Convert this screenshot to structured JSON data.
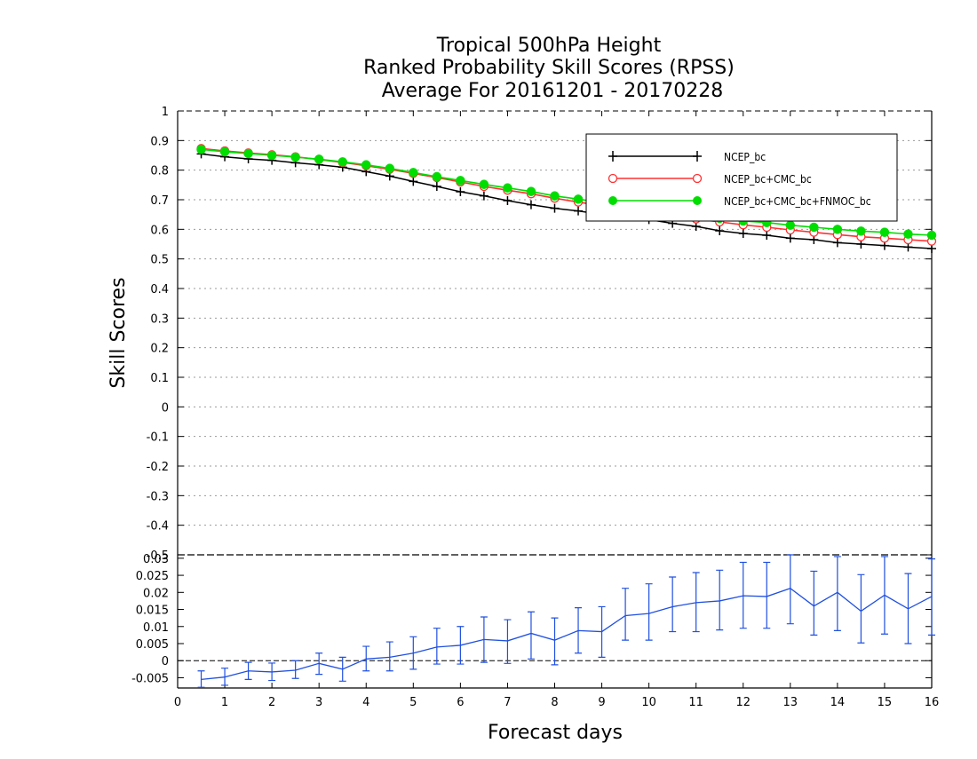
{
  "titles": [
    "Tropical 500hPa Height",
    "Ranked Probability Skill Scores (RPSS)",
    "Average For 20161201 - 20170228"
  ],
  "colors": {
    "ncep": "#000000",
    "cmc": "#ff3030",
    "fnmoc": "#00dd00",
    "diff": "#2050e0"
  },
  "chart_data": [
    {
      "type": "line",
      "title": "Tropical 500hPa Height Ranked Probability Skill Scores (RPSS) Average For 20161201 - 20170228",
      "xlabel": "Forecast days",
      "ylabel": "Skill Scores",
      "xlim": [
        0,
        16
      ],
      "ylim": [
        -0.5,
        1
      ],
      "x_ticks": [
        "0",
        "1",
        "2",
        "3",
        "4",
        "5",
        "6",
        "7",
        "8",
        "9",
        "10",
        "11",
        "12",
        "13",
        "14",
        "15",
        "16"
      ],
      "y_ticks": [
        "1",
        "0.9",
        "0.8",
        "0.7",
        "0.6",
        "0.5",
        "0.4",
        "0.3",
        "0.2",
        "0.1",
        "0",
        "-0.1",
        "-0.2",
        "-0.3",
        "-0.4",
        "-0.5"
      ],
      "grid": true,
      "legend_position": "top-right",
      "x": [
        0.5,
        1,
        1.5,
        2,
        2.5,
        3,
        3.5,
        4,
        4.5,
        5,
        5.5,
        6,
        6.5,
        7,
        7.5,
        8,
        8.5,
        9,
        9.5,
        10,
        10.5,
        11,
        11.5,
        12,
        12.5,
        13,
        13.5,
        14,
        14.5,
        15,
        15.5,
        16
      ],
      "series": [
        {
          "name": "NCEP_bc",
          "marker": "plus",
          "values": [
            0.855,
            0.845,
            0.838,
            0.833,
            0.825,
            0.818,
            0.81,
            0.795,
            0.78,
            0.762,
            0.745,
            0.727,
            0.713,
            0.697,
            0.683,
            0.671,
            0.662,
            0.65,
            0.642,
            0.633,
            0.62,
            0.61,
            0.595,
            0.586,
            0.58,
            0.57,
            0.565,
            0.555,
            0.55,
            0.545,
            0.54,
            0.535
          ]
        },
        {
          "name": "NCEP_bc+CMC_bc",
          "marker": "open-circle",
          "values": [
            0.873,
            0.865,
            0.858,
            0.852,
            0.845,
            0.836,
            0.826,
            0.815,
            0.803,
            0.789,
            0.775,
            0.76,
            0.745,
            0.732,
            0.72,
            0.705,
            0.692,
            0.68,
            0.67,
            0.66,
            0.647,
            0.635,
            0.625,
            0.615,
            0.607,
            0.598,
            0.59,
            0.582,
            0.575,
            0.57,
            0.565,
            0.56
          ]
        },
        {
          "name": "NCEP_bc+CMC_bc+FNMOC_bc",
          "marker": "filled-circle",
          "values": [
            0.87,
            0.862,
            0.856,
            0.85,
            0.844,
            0.837,
            0.828,
            0.818,
            0.806,
            0.792,
            0.778,
            0.765,
            0.752,
            0.74,
            0.728,
            0.713,
            0.702,
            0.69,
            0.68,
            0.67,
            0.657,
            0.645,
            0.637,
            0.628,
            0.623,
            0.614,
            0.607,
            0.6,
            0.594,
            0.59,
            0.584,
            0.58
          ]
        }
      ]
    },
    {
      "type": "line",
      "title": "",
      "xlabel": "Forecast days",
      "ylabel": "",
      "xlim": [
        0,
        16
      ],
      "ylim": [
        -0.008,
        0.031
      ],
      "y_ticks": [
        "0.03",
        "0.025",
        "0.02",
        "0.015",
        "0.01",
        "0.005",
        "0",
        "-0.005"
      ],
      "y_tick_values": [
        0.03,
        0.025,
        0.02,
        0.015,
        0.01,
        0.005,
        0,
        -0.005
      ],
      "zero_line": true,
      "x": [
        0.5,
        1,
        1.5,
        2,
        2.5,
        3,
        3.5,
        4,
        4.5,
        5,
        5.5,
        6,
        6.5,
        7,
        7.5,
        8,
        8.5,
        9,
        9.5,
        10,
        10.5,
        11,
        11.5,
        12,
        12.5,
        13,
        13.5,
        14,
        14.5,
        15,
        15.5,
        16
      ],
      "series": [
        {
          "values": [
            -0.0055,
            -0.0048,
            -0.003,
            -0.0033,
            -0.0028,
            -0.0008,
            -0.0025,
            0.0005,
            0.001,
            0.0022,
            0.004,
            0.0045,
            0.0062,
            0.0058,
            0.008,
            0.006,
            0.0088,
            0.0085,
            0.0132,
            0.0138,
            0.0158,
            0.017,
            0.0175,
            0.019,
            0.0188,
            0.0212,
            0.016,
            0.02,
            0.0145,
            0.0192,
            0.0152,
            0.0188
          ],
          "error_low": [
            -0.0078,
            -0.0072,
            -0.0055,
            -0.0058,
            -0.0052,
            -0.004,
            -0.006,
            -0.003,
            -0.003,
            -0.0025,
            -0.001,
            -0.001,
            -0.0005,
            -0.0008,
            0.0005,
            -0.0012,
            0.0022,
            0.001,
            0.006,
            0.006,
            0.0085,
            0.0085,
            0.009,
            0.0095,
            0.0095,
            0.0108,
            0.0075,
            0.0088,
            0.0052,
            0.0078,
            0.005,
            0.0075
          ],
          "error_high": [
            -0.003,
            -0.0022,
            -0.0005,
            -0.0007,
            0.0,
            0.0022,
            0.001,
            0.0042,
            0.0055,
            0.007,
            0.0095,
            0.01,
            0.0128,
            0.012,
            0.0143,
            0.0125,
            0.0155,
            0.0158,
            0.0212,
            0.0225,
            0.0245,
            0.0258,
            0.0265,
            0.0288,
            0.0288,
            0.0315,
            0.0262,
            0.0305,
            0.0252,
            0.0305,
            0.0255,
            0.0298
          ]
        }
      ]
    }
  ]
}
